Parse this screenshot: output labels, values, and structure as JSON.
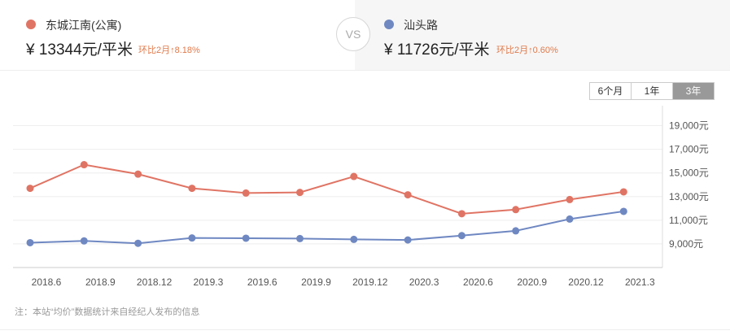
{
  "compare": {
    "left": {
      "name": "东城江南(公寓)",
      "price": "¥ 13344元/平米",
      "change": "环比2月↑8.18%",
      "color": "#e07464"
    },
    "vs": "VS",
    "right": {
      "name": "汕头路",
      "price": "¥ 11726元/平米",
      "change": "环比2月↑0.60%",
      "color": "#6f88c2"
    }
  },
  "ranges": {
    "items": [
      "6个月",
      "1年",
      "3年"
    ],
    "active": "3年"
  },
  "note": "注：本站“均价”数据统计来自经纪人发布的信息",
  "chart_data": {
    "type": "line",
    "x_ticks": [
      "2018.6",
      "2018.9",
      "2018.12",
      "2019.3",
      "2019.6",
      "2019.9",
      "2019.12",
      "2020.3",
      "2020.6",
      "2020.9",
      "2020.12",
      "2021.3"
    ],
    "y_ticks": [
      "9,000元",
      "11,000元",
      "13,000元",
      "15,000元",
      "17,000元",
      "19,000元"
    ],
    "y_values": [
      9000,
      11000,
      13000,
      15000,
      17000,
      19000
    ],
    "ylim": [
      7000,
      20000
    ],
    "grid": true,
    "series": [
      {
        "name": "东城江南(公寓)",
        "color": "#e07464",
        "values": [
          13700,
          15700,
          14900,
          13700,
          13300,
          13350,
          14700,
          13150,
          11550,
          11900,
          12750,
          13400
        ]
      },
      {
        "name": "汕头路",
        "color": "#6f88c2",
        "values": [
          9100,
          9250,
          9050,
          9500,
          9480,
          9450,
          9380,
          9330,
          9700,
          10100,
          11100,
          11750
        ]
      }
    ]
  }
}
